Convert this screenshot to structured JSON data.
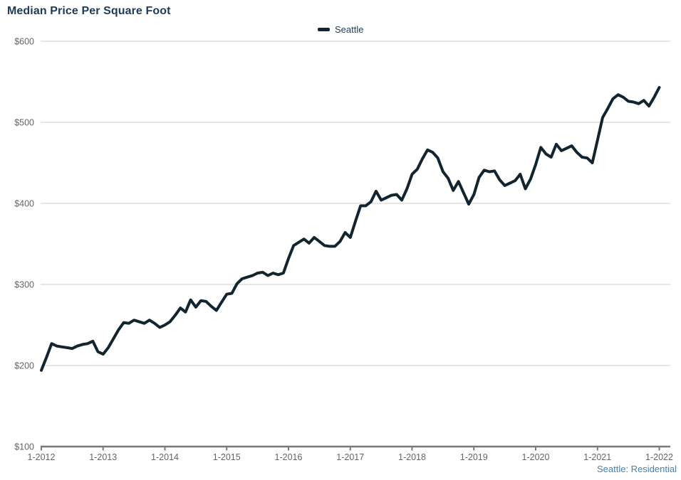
{
  "header": {
    "title": "Median Price Per Square Foot"
  },
  "legend": {
    "items": [
      {
        "label": "Seattle",
        "color": "#11242f"
      }
    ]
  },
  "footer": {
    "source_label": "Seattle: Residential"
  },
  "colors": {
    "line": "#11242f",
    "title_text": "#1d3a56",
    "grid_line": "#cccccc",
    "axis_line": "#77787b",
    "tick_label": "#636466",
    "source_note": "#4682b4"
  },
  "chart_data": {
    "type": "line",
    "title": "Median Price Per Square Foot",
    "x_frequency": "monthly",
    "x_start": "1-2012",
    "x_end": "1-2022",
    "x_tick_labels": [
      "1-2012",
      "1-2013",
      "1-2014",
      "1-2015",
      "1-2016",
      "1-2017",
      "1-2018",
      "1-2019",
      "1-2020",
      "1-2021",
      "1-2022"
    ],
    "y_tick_prefix": "$",
    "y_tick_values": [
      100,
      200,
      300,
      400,
      500,
      600
    ],
    "ylim": [
      100,
      600
    ],
    "grid": "horizontal",
    "legend_position": "top-center",
    "source_note": "Seattle: Residential",
    "series": [
      {
        "name": "Seattle",
        "color": "#11242f",
        "values": [
          194,
          210,
          227,
          224,
          223,
          222,
          221,
          224,
          226,
          227,
          230,
          217,
          214,
          222,
          233,
          244,
          253,
          252,
          256,
          254,
          252,
          256,
          252,
          247,
          250,
          254,
          262,
          271,
          266,
          281,
          272,
          280,
          279,
          273,
          268,
          278,
          288,
          289,
          301,
          307,
          309,
          311,
          314,
          315,
          311,
          314,
          312,
          314,
          332,
          348,
          352,
          356,
          351,
          358,
          353,
          348,
          347,
          347,
          353,
          364,
          358,
          378,
          397,
          397,
          402,
          415,
          404,
          407,
          410,
          411,
          404,
          418,
          436,
          442,
          455,
          466,
          463,
          456,
          439,
          431,
          416,
          427,
          413,
          399,
          411,
          432,
          441,
          439,
          440,
          429,
          422,
          425,
          428,
          436,
          418,
          430,
          448,
          469,
          461,
          457,
          473,
          465,
          468,
          471,
          463,
          457,
          456,
          450,
          478,
          506,
          517,
          529,
          534,
          531,
          526,
          525,
          523,
          527,
          520,
          531,
          543
        ]
      }
    ]
  }
}
